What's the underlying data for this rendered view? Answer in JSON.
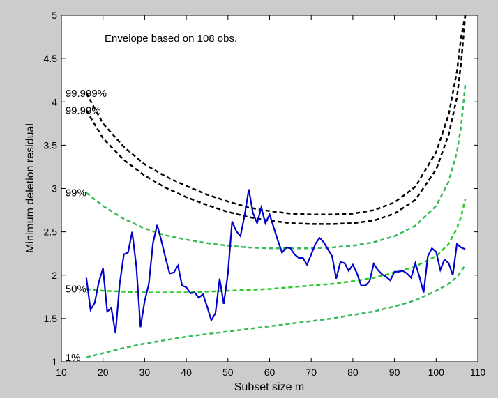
{
  "chart_data": {
    "type": "line",
    "title": "",
    "xlabel": "Subset size m",
    "ylabel": "Minimum deletion residual",
    "xlim": [
      10,
      110
    ],
    "ylim": [
      1,
      5
    ],
    "xticks": [
      10,
      20,
      30,
      40,
      50,
      60,
      70,
      80,
      90,
      100,
      110
    ],
    "yticks": [
      1,
      1.5,
      2,
      2.5,
      3,
      3.5,
      4,
      4.5,
      5
    ],
    "grid": false,
    "annotation": "Envelope based on 108 obs.",
    "envelopes": [
      {
        "label": "99.999%",
        "color": "#000000",
        "x": [
          16,
          20,
          25,
          30,
          35,
          40,
          45,
          50,
          55,
          60,
          65,
          70,
          75,
          80,
          85,
          90,
          95,
          100,
          103,
          105,
          106,
          107
        ],
        "y": [
          4.1,
          3.75,
          3.48,
          3.28,
          3.14,
          3.03,
          2.93,
          2.85,
          2.78,
          2.74,
          2.71,
          2.7,
          2.7,
          2.71,
          2.75,
          2.84,
          3.02,
          3.42,
          3.85,
          4.35,
          4.75,
          5.0
        ]
      },
      {
        "label": "99.99%",
        "color": "#000000",
        "x": [
          16,
          20,
          25,
          30,
          35,
          40,
          45,
          50,
          55,
          60,
          65,
          70,
          75,
          80,
          85,
          90,
          95,
          100,
          103,
          105,
          106,
          107
        ],
        "y": [
          3.9,
          3.58,
          3.33,
          3.15,
          3.01,
          2.9,
          2.81,
          2.73,
          2.67,
          2.63,
          2.6,
          2.59,
          2.59,
          2.6,
          2.63,
          2.71,
          2.87,
          3.22,
          3.62,
          4.05,
          4.45,
          5.0
        ]
      },
      {
        "label": "99%",
        "color": "#33bb55",
        "x": [
          16,
          20,
          25,
          30,
          35,
          40,
          45,
          50,
          55,
          60,
          65,
          70,
          75,
          80,
          85,
          90,
          95,
          100,
          103,
          105,
          106,
          107
        ],
        "y": [
          2.95,
          2.8,
          2.65,
          2.54,
          2.46,
          2.41,
          2.37,
          2.34,
          2.32,
          2.31,
          2.31,
          2.31,
          2.32,
          2.34,
          2.38,
          2.45,
          2.57,
          2.8,
          3.08,
          3.42,
          3.72,
          4.2
        ]
      },
      {
        "label": "50%",
        "color": "#22cc22",
        "x": [
          16,
          20,
          25,
          30,
          35,
          40,
          45,
          50,
          55,
          60,
          65,
          70,
          75,
          80,
          85,
          90,
          95,
          100,
          103,
          105,
          106,
          107
        ],
        "y": [
          1.84,
          1.82,
          1.81,
          1.8,
          1.8,
          1.8,
          1.81,
          1.82,
          1.83,
          1.84,
          1.86,
          1.88,
          1.9,
          1.93,
          1.97,
          2.03,
          2.1,
          2.22,
          2.36,
          2.54,
          2.68,
          2.88
        ]
      },
      {
        "label": "1%",
        "color": "#33bb55",
        "x": [
          16,
          20,
          25,
          30,
          35,
          40,
          45,
          50,
          55,
          60,
          65,
          70,
          75,
          80,
          85,
          90,
          95,
          100,
          103,
          105,
          106,
          107
        ],
        "y": [
          1.05,
          1.1,
          1.16,
          1.21,
          1.25,
          1.29,
          1.32,
          1.35,
          1.38,
          1.41,
          1.44,
          1.47,
          1.5,
          1.54,
          1.58,
          1.64,
          1.71,
          1.82,
          1.9,
          1.98,
          2.04,
          2.12
        ]
      }
    ],
    "series": [
      {
        "name": "",
        "color": "#0000cc",
        "x": [
          16,
          17,
          18,
          19,
          20,
          21,
          22,
          23,
          24,
          25,
          26,
          27,
          28,
          29,
          30,
          31,
          32,
          33,
          34,
          35,
          36,
          37,
          38,
          39,
          40,
          41,
          42,
          43,
          44,
          45,
          46,
          47,
          48,
          49,
          50,
          51,
          52,
          53,
          54,
          55,
          56,
          57,
          58,
          59,
          60,
          61,
          62,
          63,
          64,
          65,
          66,
          67,
          68,
          69,
          70,
          71,
          72,
          73,
          74,
          75,
          76,
          77,
          78,
          79,
          80,
          81,
          82,
          83,
          84,
          85,
          86,
          87,
          88,
          89,
          90,
          91,
          92,
          93,
          94,
          95,
          96,
          97,
          98,
          99,
          100,
          101,
          102,
          103,
          104,
          105,
          106,
          107
        ],
        "y": [
          1.97,
          1.6,
          1.68,
          1.92,
          2.08,
          1.58,
          1.62,
          1.33,
          1.9,
          2.24,
          2.26,
          2.5,
          2.1,
          1.4,
          1.7,
          1.9,
          2.37,
          2.58,
          2.4,
          2.2,
          2.02,
          2.03,
          2.11,
          1.88,
          1.86,
          1.79,
          1.8,
          1.74,
          1.78,
          1.64,
          1.48,
          1.56,
          1.96,
          1.67,
          2.02,
          2.62,
          2.51,
          2.45,
          2.69,
          2.99,
          2.72,
          2.6,
          2.78,
          2.6,
          2.7,
          2.55,
          2.4,
          2.26,
          2.32,
          2.31,
          2.24,
          2.2,
          2.2,
          2.12,
          2.24,
          2.36,
          2.43,
          2.38,
          2.3,
          2.22,
          1.96,
          2.15,
          2.14,
          2.05,
          2.12,
          2.02,
          1.88,
          1.88,
          1.93,
          2.13,
          2.06,
          2.01,
          1.98,
          1.94,
          2.04,
          2.04,
          2.05,
          2.02,
          1.97,
          2.14,
          1.98,
          1.8,
          2.22,
          2.31,
          2.27,
          2.06,
          2.18,
          2.14,
          2.0,
          2.36,
          2.32,
          2.3
        ]
      }
    ]
  }
}
